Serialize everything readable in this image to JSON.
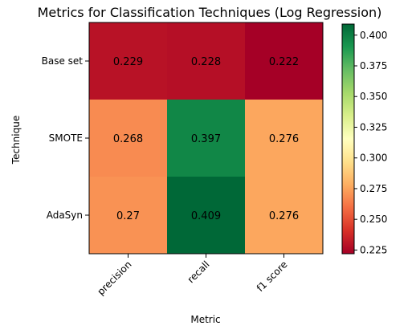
{
  "chart_data": {
    "type": "heatmap",
    "title": "Metrics for Classification Techniques (Log Regression)",
    "xlabel": "Metric",
    "ylabel": "Technique",
    "x_categories": [
      "precision",
      "recall",
      "f1 score"
    ],
    "y_categories": [
      "Base set",
      "SMOTE",
      "AdaSyn"
    ],
    "values": [
      [
        0.229,
        0.228,
        0.222
      ],
      [
        0.268,
        0.397,
        0.276
      ],
      [
        0.27,
        0.409,
        0.276
      ]
    ],
    "cell_labels": [
      [
        "0.229",
        "0.228",
        "0.222"
      ],
      [
        "0.268",
        "0.397",
        "0.276"
      ],
      [
        "0.27",
        "0.409",
        "0.276"
      ]
    ],
    "colormap": "RdYlGn",
    "colorbar": {
      "vmin": 0.222,
      "vmax": 0.409,
      "ticks": [
        0.225,
        0.25,
        0.275,
        0.3,
        0.325,
        0.35,
        0.375,
        0.4
      ],
      "tick_labels": [
        "0.225",
        "0.250",
        "0.275",
        "0.300",
        "0.325",
        "0.350",
        "0.375",
        "0.400"
      ]
    }
  }
}
